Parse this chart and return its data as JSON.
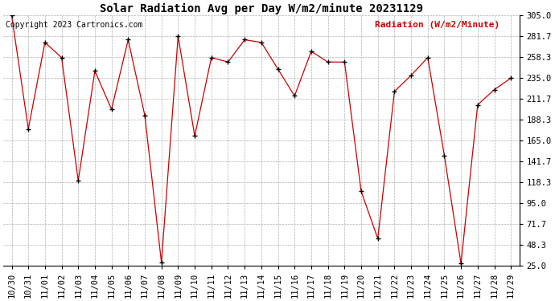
{
  "title": "Solar Radiation Avg per Day W/m2/minute 20231129",
  "copyright": "Copyright 2023 Cartronics.com",
  "legend_label": "Radiation (W/m2/Minute)",
  "dates": [
    "10/30",
    "10/31",
    "11/01",
    "11/02",
    "11/03",
    "11/04",
    "11/05",
    "11/06",
    "11/07",
    "11/08",
    "11/09",
    "11/10",
    "11/11",
    "11/12",
    "11/13",
    "11/14",
    "11/15",
    "11/16",
    "11/17",
    "11/18",
    "11/19",
    "11/20",
    "11/21",
    "11/22",
    "11/23",
    "11/24",
    "11/25",
    "11/26",
    "11/27",
    "11/28",
    "11/29"
  ],
  "values": [
    305.0,
    178.0,
    275.0,
    258.0,
    120.0,
    243.0,
    200.0,
    278.0,
    193.0,
    28.0,
    282.0,
    170.0,
    258.0,
    253.0,
    278.0,
    275.0,
    245.0,
    215.0,
    265.0,
    253.0,
    253.0,
    108.0,
    55.0,
    220.0,
    238.0,
    258.0,
    148.0,
    27.0,
    205.0,
    222.0,
    235.0
  ],
  "y_ticks": [
    25.0,
    48.3,
    71.7,
    95.0,
    118.3,
    141.7,
    165.0,
    188.3,
    211.7,
    235.0,
    258.3,
    281.7,
    305.0
  ],
  "ylim": [
    25.0,
    305.0
  ],
  "line_color": "#cc0000",
  "marker_color": "#000000",
  "bg_color": "#ffffff",
  "grid_color": "#b0b0b0",
  "title_fontsize": 10,
  "copyright_fontsize": 7,
  "legend_fontsize": 8,
  "tick_fontsize": 7.5
}
